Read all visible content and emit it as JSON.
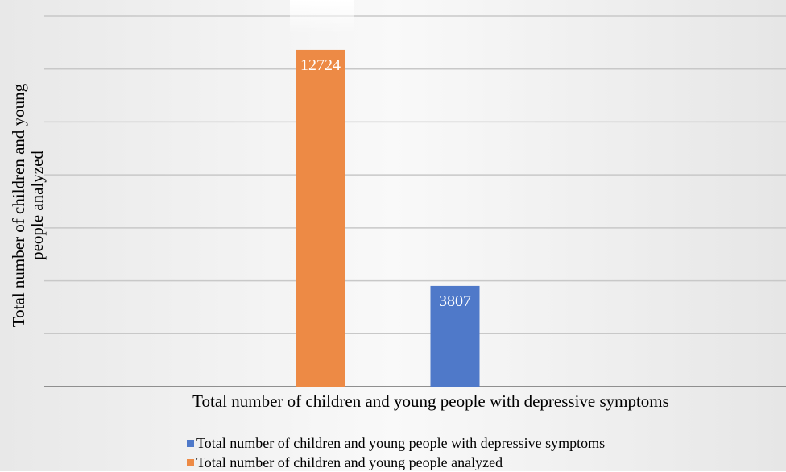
{
  "chart_data": {
    "type": "bar",
    "title": "",
    "ylabel": "Total number of children and young people analyzed",
    "xlabel": "Total number of children and young people with depressive symptoms",
    "ylim": [
      0,
      14000
    ],
    "grid": true,
    "legend_position": "bottom",
    "series": [
      {
        "name": "Total number of children and young people analyzed",
        "values": [
          12724
        ],
        "color": "#ed8a45"
      },
      {
        "name": "Total number of children and young people with depressive symptoms",
        "values": [
          3807
        ],
        "color": "#4f79c9"
      }
    ]
  }
}
